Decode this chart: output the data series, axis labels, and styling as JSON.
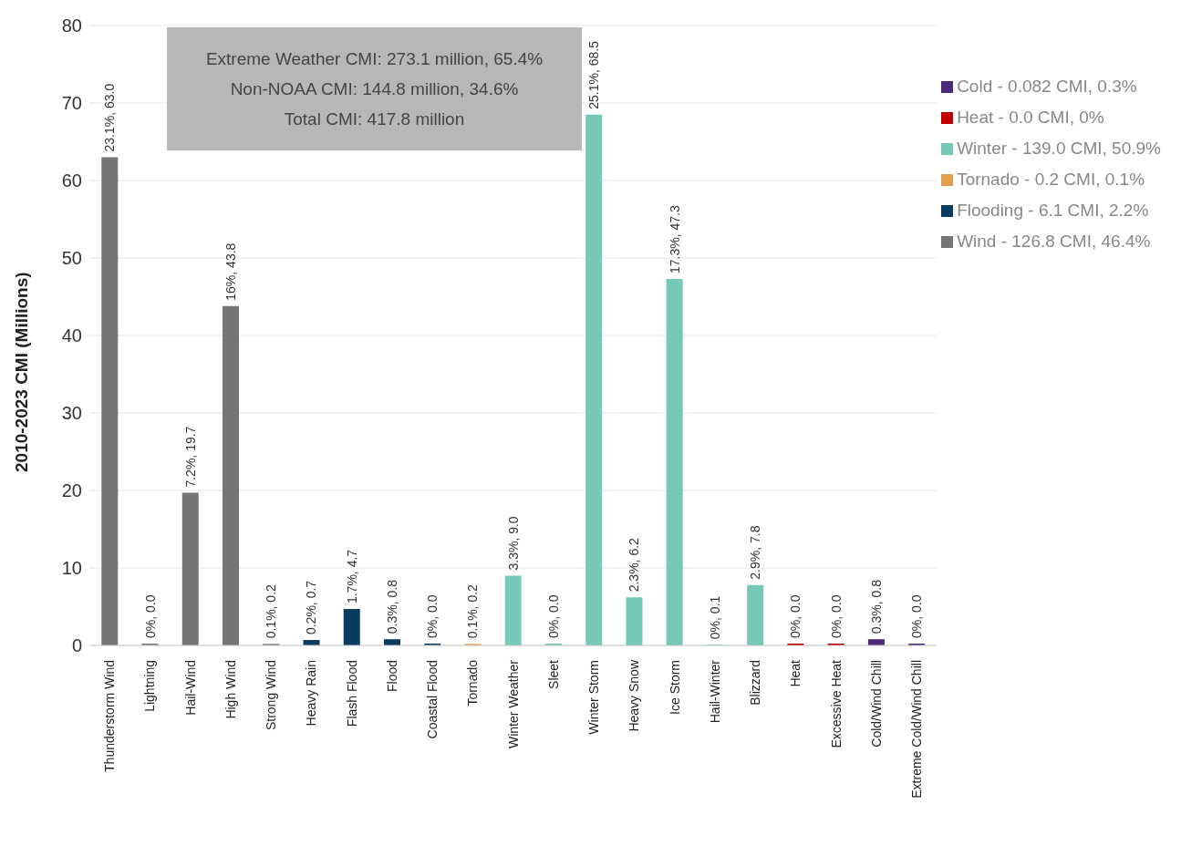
{
  "chart_data": {
    "type": "bar",
    "stacked": true,
    "ylabel": "2010-2023 CMI (Millions)",
    "categories": [
      "Thunderstorm Wind",
      "Lightning",
      "Hail-Wind",
      "High Wind",
      "Strong Wind",
      "Heavy Rain",
      "Flash Flood",
      "Flood",
      "Coastal Flood",
      "Tornado",
      "Winter Weather",
      "Sleet",
      "Winter Storm",
      "Heavy Snow",
      "Ice Storm",
      "Hail-Winter",
      "Blizzard",
      "Heat",
      "Excessive Heat",
      "Cold/Wind Chill",
      "Extreme Cold/Wind Chill"
    ],
    "series": [
      {
        "name": "Cold - 0.082 CMI, 0.3%",
        "color": "#4b2a7a",
        "values": [
          null,
          null,
          null,
          null,
          null,
          null,
          null,
          null,
          null,
          null,
          null,
          null,
          null,
          null,
          null,
          null,
          null,
          null,
          null,
          0.8,
          0.0
        ],
        "value_labels": [
          null,
          null,
          null,
          null,
          null,
          null,
          null,
          null,
          null,
          null,
          null,
          null,
          null,
          null,
          null,
          null,
          null,
          null,
          null,
          "0.3%, 0.8",
          "0%, 0.0"
        ]
      },
      {
        "name": "Heat - 0.0 CMI, 0%",
        "color": "#c00000",
        "values": [
          null,
          null,
          null,
          null,
          null,
          null,
          null,
          null,
          null,
          null,
          null,
          null,
          null,
          null,
          null,
          null,
          null,
          0.0,
          0.0,
          null,
          null
        ],
        "value_labels": [
          null,
          null,
          null,
          null,
          null,
          null,
          null,
          null,
          null,
          null,
          null,
          null,
          null,
          null,
          null,
          null,
          null,
          "0%, 0.0",
          "0%, 0.0",
          null,
          null
        ]
      },
      {
        "name": "Winter - 139.0 CMI, 50.9%",
        "color": "#76c8b9",
        "values": [
          null,
          null,
          null,
          null,
          null,
          null,
          null,
          null,
          null,
          null,
          9.0,
          0.0,
          68.5,
          6.2,
          47.3,
          0.1,
          7.8,
          null,
          null,
          null,
          null
        ],
        "value_labels": [
          null,
          null,
          null,
          null,
          null,
          null,
          null,
          null,
          null,
          null,
          "3.3%, 9.0",
          "0%, 0.0",
          "25.1%, 68.5",
          "2.3%, 6.2",
          "17.3%, 47.3",
          "0%, 0.1",
          "2.9%, 7.8",
          null,
          null,
          null,
          null
        ]
      },
      {
        "name": "Tornado - 0.2 CMI, 0.1%",
        "color": "#e3a04a",
        "values": [
          null,
          null,
          null,
          null,
          null,
          null,
          null,
          null,
          null,
          0.2,
          null,
          null,
          null,
          null,
          null,
          null,
          null,
          null,
          null,
          null,
          null
        ],
        "value_labels": [
          null,
          null,
          null,
          null,
          null,
          null,
          null,
          null,
          null,
          "0.1%, 0.2",
          null,
          null,
          null,
          null,
          null,
          null,
          null,
          null,
          null,
          null,
          null
        ]
      },
      {
        "name": "Flooding - 6.1 CMI, 2.2%",
        "color": "#0b3b5e",
        "values": [
          null,
          null,
          null,
          null,
          null,
          0.7,
          4.7,
          0.8,
          0.0,
          null,
          null,
          null,
          null,
          null,
          null,
          null,
          null,
          null,
          null,
          null,
          null
        ],
        "value_labels": [
          null,
          null,
          null,
          null,
          null,
          "0.2%, 0.7",
          "1.7%, 4.7",
          "0.3%, 0.8",
          "0%, 0.0",
          null,
          null,
          null,
          null,
          null,
          null,
          null,
          null,
          null,
          null,
          null,
          null
        ]
      },
      {
        "name": "Wind - 126.8 CMI, 46.4%",
        "color": "#757575",
        "values": [
          63.0,
          0.0,
          19.7,
          43.8,
          0.2,
          null,
          null,
          null,
          null,
          null,
          null,
          null,
          null,
          null,
          null,
          null,
          null,
          null,
          null,
          null,
          null
        ],
        "value_labels": [
          "23.1%, 63.0",
          "0%, 0.0",
          "7.2%, 19.7",
          "16%, 43.8",
          "0.1%, 0.2",
          null,
          null,
          null,
          null,
          null,
          null,
          null,
          null,
          null,
          null,
          null,
          null,
          null,
          null,
          null,
          null
        ]
      }
    ],
    "ylim": [
      0,
      80
    ],
    "yticks": [
      0,
      10,
      20,
      30,
      40,
      50,
      60,
      70,
      80
    ],
    "grid": "y",
    "legend": "top right",
    "annotations": [
      "Extreme Weather CMI: 273.1 million, 65.4%",
      "Non-NOAA CMI: 144.8 million, 34.6%",
      "Total CMI: 417.8 million"
    ]
  }
}
